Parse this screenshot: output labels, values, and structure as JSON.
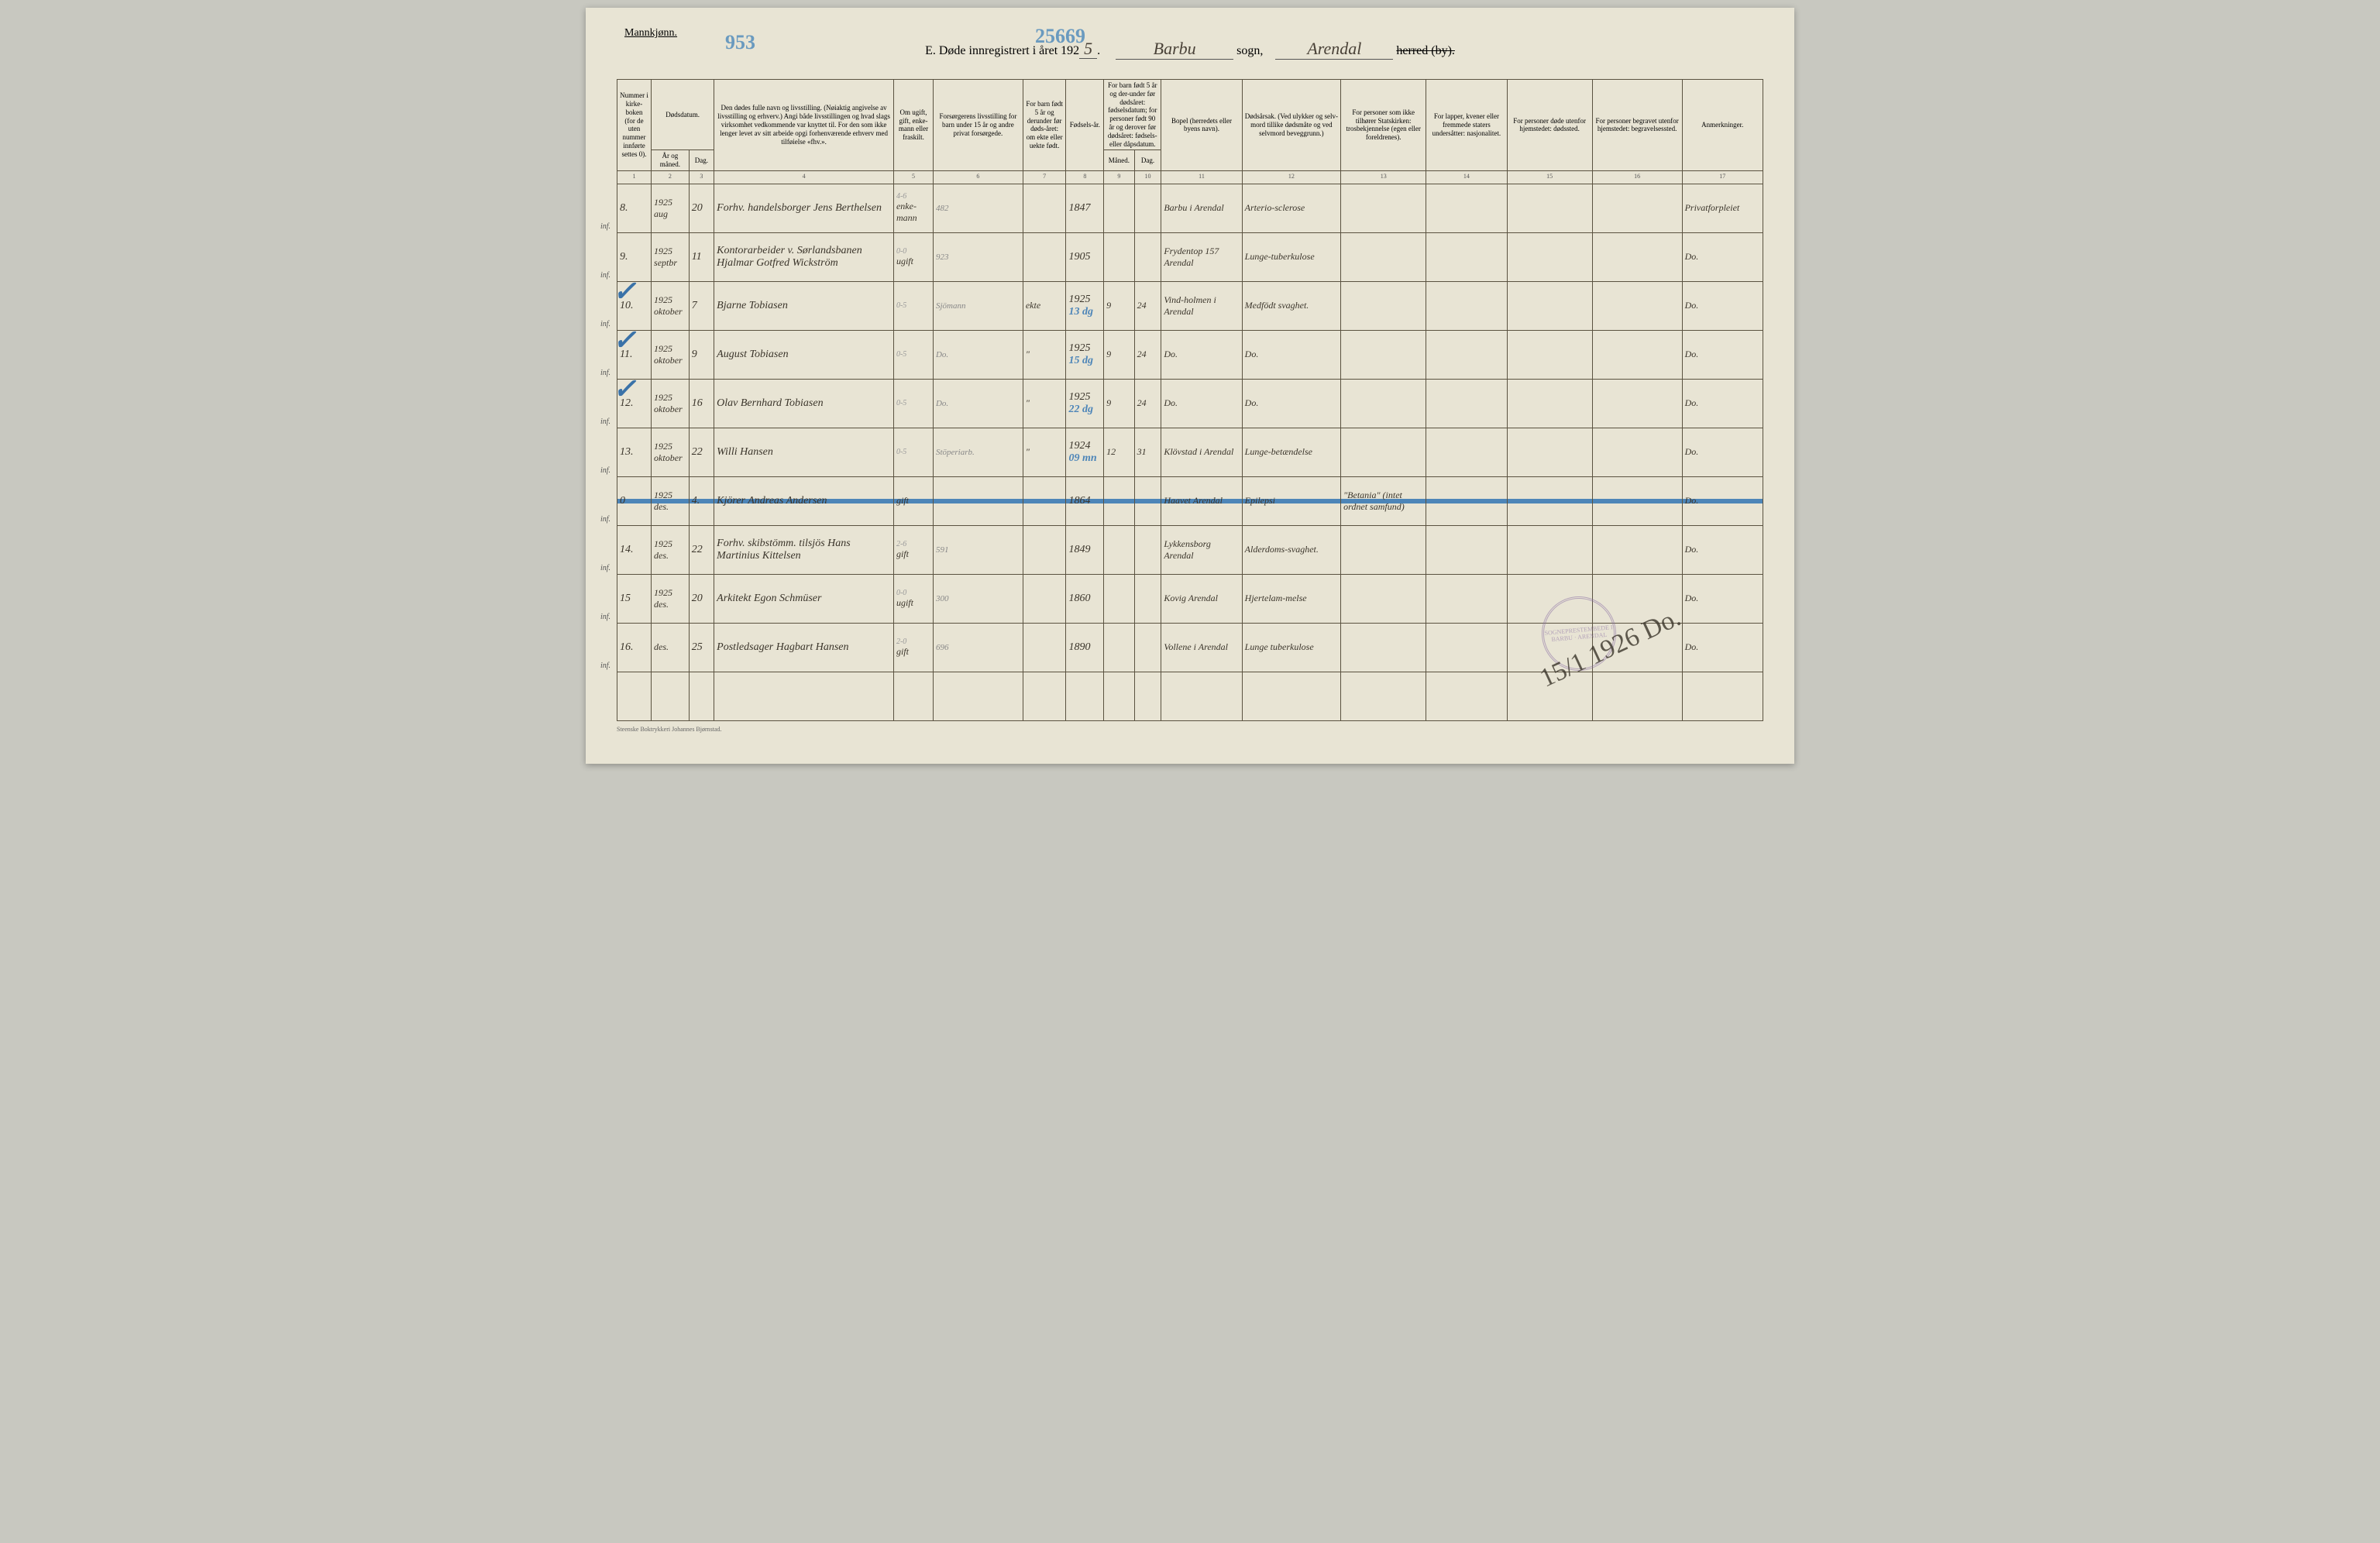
{
  "gender_label": "Mannkjønn.",
  "header": {
    "part_e": "E.",
    "title_pre": "Døde innregistrert i året 192",
    "year_suffix": "5",
    "sogn": "Barbu",
    "sogn_label": "sogn,",
    "herred": "Arendal",
    "herred_label": "herred (by).",
    "crayon_left": "953",
    "crayon_center": "25669"
  },
  "col_headers": {
    "c1": "Nummer i kirke-boken (for de uten nummer innførte settes 0).",
    "c2_top": "Dødsdatum.",
    "c2a": "År og måned.",
    "c2b": "Dag.",
    "c4": "Den dødes fulle navn og livsstilling. (Nøiaktig angivelse av livsstilling og erhverv.) Angi både livsstillingen og hvad slags virksomhet vedkommende var knyttet til. For den som ikke lenger levet av sitt arbeide opgi forhenværende erhverv med tilføielse «fhv.».",
    "c5": "Om ugift, gift, enke-mann eller fraskilt.",
    "c6": "Forsørgerens livsstilling for barn under 15 år og andre privat forsørgede.",
    "c7": "For barn født 5 år og derunder før døds-året: om ekte eller uekte født.",
    "c8": "Fødsels-år.",
    "c9_top": "For barn født 5 år og der-under før dødsåret: fødselsdatum; for personer født 90 år og derover før dødsåret: fødsels- eller dåpsdatum.",
    "c9a": "Måned.",
    "c9b": "Dag.",
    "c11": "Bopel (herredets eller byens navn).",
    "c12": "Dødsårsak. (Ved ulykker og selv-mord tillike dødsmåte og ved selvmord beveggrunn.)",
    "c13": "For personer som ikke tilhører Statskirken: trosbekjennelse (egen eller foreldrenes).",
    "c14": "For lapper, kvener eller fremmede staters undersåtter: nasjonalitet.",
    "c15": "For personer døde utenfor hjemstedet: dødssted.",
    "c16": "For personer begravet utenfor hjemstedet: begravelsessted.",
    "c17": "Anmerkninger."
  },
  "colnums": [
    "1",
    "2",
    "3",
    "4",
    "5",
    "6",
    "7",
    "8",
    "9",
    "10",
    "11",
    "12",
    "13",
    "14",
    "15",
    "16",
    "17"
  ],
  "rows": [
    {
      "no": "8.",
      "yr": "1925 aug",
      "day": "20",
      "name": "Forhv. handelsborger Jens Berthelsen",
      "status": "enke- mann",
      "status_pencil": "4-6",
      "supporter": "482",
      "ekte": "",
      "birth": "1847",
      "bm": "",
      "bd": "",
      "place": "Barbu i Arendal",
      "cause": "Arterio-sclerose",
      "c13": "",
      "c14": "",
      "c15": "",
      "c16": "",
      "note": "Privatforpleiet",
      "inf": "inf.",
      "check": false
    },
    {
      "no": "9.",
      "yr": "1925 septbr",
      "day": "11",
      "name": "Kontorarbeider v. Sørlandsbanen Hjalmar Gotfred Wickström",
      "status": "ugift",
      "status_pencil": "0-0",
      "supporter": "923",
      "ekte": "",
      "birth": "1905",
      "bm": "",
      "bd": "",
      "place": "Frydentop 157 Arendal",
      "cause": "Lunge-tuberkulose",
      "c13": "",
      "c14": "",
      "c15": "",
      "c16": "",
      "note": "Do.",
      "inf": "inf.",
      "check": false
    },
    {
      "no": "10.",
      "yr": "1925 oktober",
      "day": "7",
      "name": "Bjarne Tobiasen",
      "status": "",
      "status_pencil": "0-5",
      "supporter": "Sjömann",
      "ekte": "ekte",
      "birth": "1925",
      "bm": "9",
      "bd": "24",
      "place": "Vind-holmen i Arendal",
      "cause": "Medfödt svaghet.",
      "c13": "",
      "c14": "",
      "c15": "",
      "c16": "",
      "note": "Do.",
      "inf": "inf.",
      "check": true,
      "blue_over": "13 dg"
    },
    {
      "no": "11.",
      "yr": "1925 oktober",
      "day": "9",
      "name": "August Tobiasen",
      "status": "",
      "status_pencil": "0-5",
      "supporter": "Do.",
      "ekte": "\"",
      "birth": "1925",
      "bm": "9",
      "bd": "24",
      "place": "Do.",
      "cause": "Do.",
      "c13": "",
      "c14": "",
      "c15": "",
      "c16": "",
      "note": "Do.",
      "inf": "inf.",
      "check": true,
      "blue_over": "15 dg"
    },
    {
      "no": "12.",
      "yr": "1925 oktober",
      "day": "16",
      "name": "Olav Bernhard Tobiasen",
      "status": "",
      "status_pencil": "0-5",
      "supporter": "Do.",
      "ekte": "\"",
      "birth": "1925",
      "bm": "9",
      "bd": "24",
      "place": "Do.",
      "cause": "Do.",
      "c13": "",
      "c14": "",
      "c15": "",
      "c16": "",
      "note": "Do.",
      "inf": "inf.",
      "check": true,
      "blue_over": "22 dg"
    },
    {
      "no": "13.",
      "yr": "1925 oktober",
      "day": "22",
      "name": "Willi Hansen",
      "status": "",
      "status_pencil": "0-5",
      "supporter": "Stöperiarb.",
      "ekte": "\"",
      "birth": "1924",
      "bm": "12",
      "bd": "31",
      "place": "Klövstad i Arendal",
      "cause": "Lunge-betændelse",
      "c13": "",
      "c14": "",
      "c15": "",
      "c16": "",
      "note": "Do.",
      "inf": "inf.",
      "check": false,
      "blue_over": "09 mn"
    },
    {
      "no": "0",
      "yr": "1925 des.",
      "day": "4.",
      "name": "Kjörer Andreas Andersen",
      "status": "gift",
      "status_pencil": "",
      "supporter": "",
      "ekte": "",
      "birth": "1864",
      "bm": "",
      "bd": "",
      "place": "Haavet Arendal",
      "cause": "Epilepsi",
      "c13": "\"Betania\" (intet ordnet samfund)",
      "c14": "",
      "c15": "",
      "c16": "",
      "note": "Do.",
      "inf": "inf.",
      "check": false,
      "strike": true
    },
    {
      "no": "14.",
      "yr": "1925 des.",
      "day": "22",
      "name": "Forhv. skibstömm. tilsjös Hans Martinius Kittelsen",
      "status": "gift",
      "status_pencil": "2-6",
      "supporter": "591",
      "ekte": "",
      "birth": "1849",
      "bm": "",
      "bd": "",
      "place": "Lykkensborg Arendal",
      "cause": "Alderdoms-svaghet.",
      "c13": "",
      "c14": "",
      "c15": "",
      "c16": "",
      "note": "Do.",
      "inf": "inf.",
      "check": false
    },
    {
      "no": "15",
      "yr": "1925 des.",
      "day": "20",
      "name": "Arkitekt Egon Schmüser",
      "status": "ugift",
      "status_pencil": "0-0",
      "supporter": "300",
      "ekte": "",
      "birth": "1860",
      "bm": "",
      "bd": "",
      "place": "Kovig Arendal",
      "cause": "Hjertelam-melse",
      "c13": "",
      "c14": "",
      "c15": "",
      "c16": "",
      "note": "Do.",
      "inf": "inf.",
      "check": false
    },
    {
      "no": "16.",
      "yr": "des.",
      "day": "25",
      "name": "Postledsager Hagbart Hansen",
      "status": "gift",
      "status_pencil": "2-0",
      "supporter": "696",
      "ekte": "",
      "birth": "1890",
      "bm": "",
      "bd": "",
      "place": "Vollene i Arendal",
      "cause": "Lunge tuberkulose",
      "c13": "",
      "c14": "",
      "c15": "",
      "c16": "",
      "note": "Do.",
      "inf": "inf.",
      "check": false
    }
  ],
  "stamp_text": "SOGNEPRESTEMBEDE I BARBU · ARENDAL",
  "signature": "15/1 1926  Do.",
  "printer_line": "Steenske Boktrykkeri Johannes Bjørnstad."
}
